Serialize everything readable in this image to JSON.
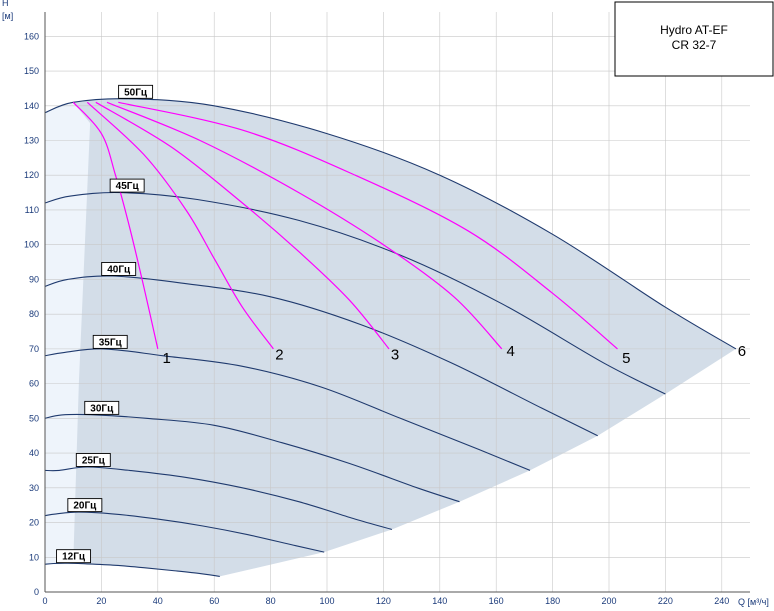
{
  "chart_data": {
    "type": "line",
    "title": "",
    "xlabel": "Q [м³/ч]",
    "ylabel_top": "H",
    "ylabel_unit": "[м]",
    "xlim": [
      0,
      250
    ],
    "ylim": [
      0,
      167
    ],
    "x_ticks": [
      0,
      20,
      40,
      60,
      80,
      100,
      120,
      140,
      160,
      180,
      200,
      220,
      240
    ],
    "y_ticks": [
      0,
      10,
      20,
      30,
      40,
      50,
      60,
      70,
      80,
      90,
      100,
      110,
      120,
      130,
      140,
      150,
      160
    ],
    "grid": true,
    "legend": {
      "line1": "Hydro AT-EF",
      "line2": "CR 32-7"
    },
    "colors": {
      "frequency_curves": "#1f3a6e",
      "system_curves": "#ff00ff",
      "envelope_fill": "#d3dde8",
      "low_flow_fill": "#eef4fb",
      "grid": "#c8c8c8",
      "axis_text": "#1a3a7a"
    },
    "series": [
      {
        "name": "50Гц",
        "x": [
          0,
          10,
          30,
          60,
          100,
          140,
          180,
          220,
          245
        ],
        "y": [
          138,
          141,
          142,
          140,
          132,
          120,
          103,
          82,
          70
        ]
      },
      {
        "name": "45Гц",
        "x": [
          0,
          9,
          27,
          54,
          90,
          126,
          162,
          198,
          220
        ],
        "y": [
          112,
          114,
          115,
          113,
          107,
          97,
          83,
          66,
          57
        ]
      },
      {
        "name": "40Гц",
        "x": [
          0,
          8,
          24,
          48,
          80,
          112,
          144,
          176,
          196
        ],
        "y": [
          88,
          90,
          91,
          89,
          85,
          77,
          66,
          53,
          45
        ]
      },
      {
        "name": "35Гц",
        "x": [
          0,
          7,
          21,
          42,
          70,
          98,
          126,
          154,
          172
        ],
        "y": [
          68,
          69,
          70,
          68,
          65,
          59,
          50,
          41,
          35
        ]
      },
      {
        "name": "30Гц",
        "x": [
          0,
          6,
          18,
          36,
          60,
          84,
          108,
          132,
          147
        ],
        "y": [
          50,
          51,
          51,
          50,
          48,
          43,
          37,
          30,
          26
        ]
      },
      {
        "name": "25Гц",
        "x": [
          0,
          5,
          15,
          30,
          50,
          70,
          90,
          110,
          123
        ],
        "y": [
          35,
          35,
          36,
          35,
          33,
          30,
          26,
          21,
          18
        ]
      },
      {
        "name": "20Гц",
        "x": [
          0,
          4,
          12,
          24,
          40,
          56,
          72,
          88,
          99
        ],
        "y": [
          22,
          22.5,
          23,
          22.5,
          21,
          19,
          16.5,
          13.5,
          11.5
        ]
      },
      {
        "name": "12Гц",
        "x": [
          0,
          3,
          8,
          15,
          25,
          35,
          45,
          55,
          62
        ],
        "y": [
          8,
          8.2,
          8.3,
          8.1,
          7.7,
          7,
          6.2,
          5.3,
          4.5
        ]
      }
    ],
    "system_curves": [
      {
        "label": "1",
        "x": [
          10,
          20,
          25,
          30,
          35,
          40
        ],
        "y": [
          141,
          132,
          120,
          105,
          88,
          70
        ]
      },
      {
        "label": "2",
        "x": [
          15,
          35,
          50,
          60,
          70,
          81
        ],
        "y": [
          141,
          126,
          110,
          96,
          82,
          70
        ]
      },
      {
        "label": "3",
        "x": [
          18,
          45,
          70,
          90,
          108,
          122
        ],
        "y": [
          141,
          128,
          112,
          98,
          84,
          70
        ]
      },
      {
        "label": "4",
        "x": [
          22,
          55,
          90,
          120,
          145,
          162
        ],
        "y": [
          141,
          130,
          115,
          100,
          85,
          70
        ]
      },
      {
        "label": "5",
        "x": [
          26,
          70,
          110,
          150,
          180,
          203
        ],
        "y": [
          141,
          133,
          120,
          104,
          86,
          70
        ]
      }
    ],
    "point_labels": [
      {
        "label": "1",
        "x": 41,
        "y": 66
      },
      {
        "label": "2",
        "x": 81,
        "y": 67
      },
      {
        "label": "3",
        "x": 122,
        "y": 67
      },
      {
        "label": "4",
        "x": 163,
        "y": 68
      },
      {
        "label": "5",
        "x": 204,
        "y": 66
      },
      {
        "label": "6",
        "x": 245,
        "y": 68
      }
    ]
  }
}
